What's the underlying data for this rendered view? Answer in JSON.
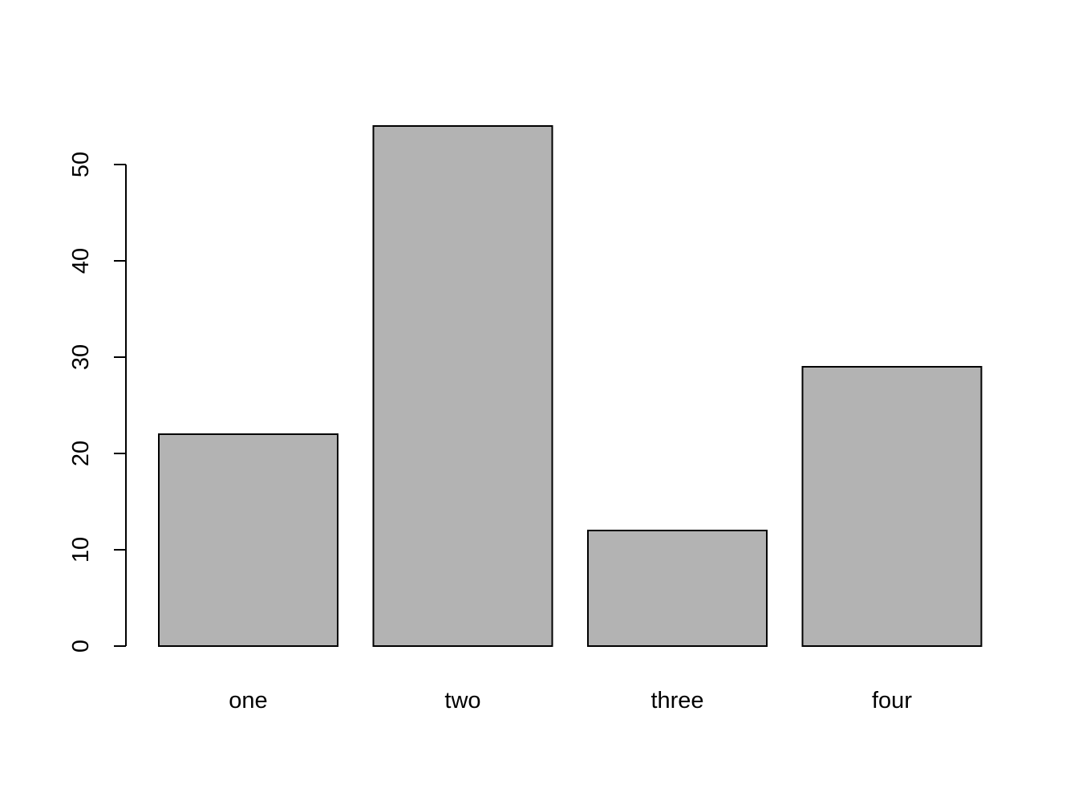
{
  "chart_data": {
    "type": "bar",
    "categories": [
      "one",
      "two",
      "three",
      "four"
    ],
    "values": [
      22,
      54,
      12,
      29
    ],
    "title": "",
    "xlabel": "",
    "ylabel": "",
    "ylim": [
      0,
      54
    ],
    "y_ticks": [
      0,
      10,
      20,
      30,
      40,
      50
    ],
    "y_tick_labels": [
      "0",
      "10",
      "20",
      "30",
      "40",
      "50"
    ],
    "grid": false,
    "legend": "none",
    "bar_color": "#b3b3b3",
    "bar_edge_color": "#000000"
  }
}
